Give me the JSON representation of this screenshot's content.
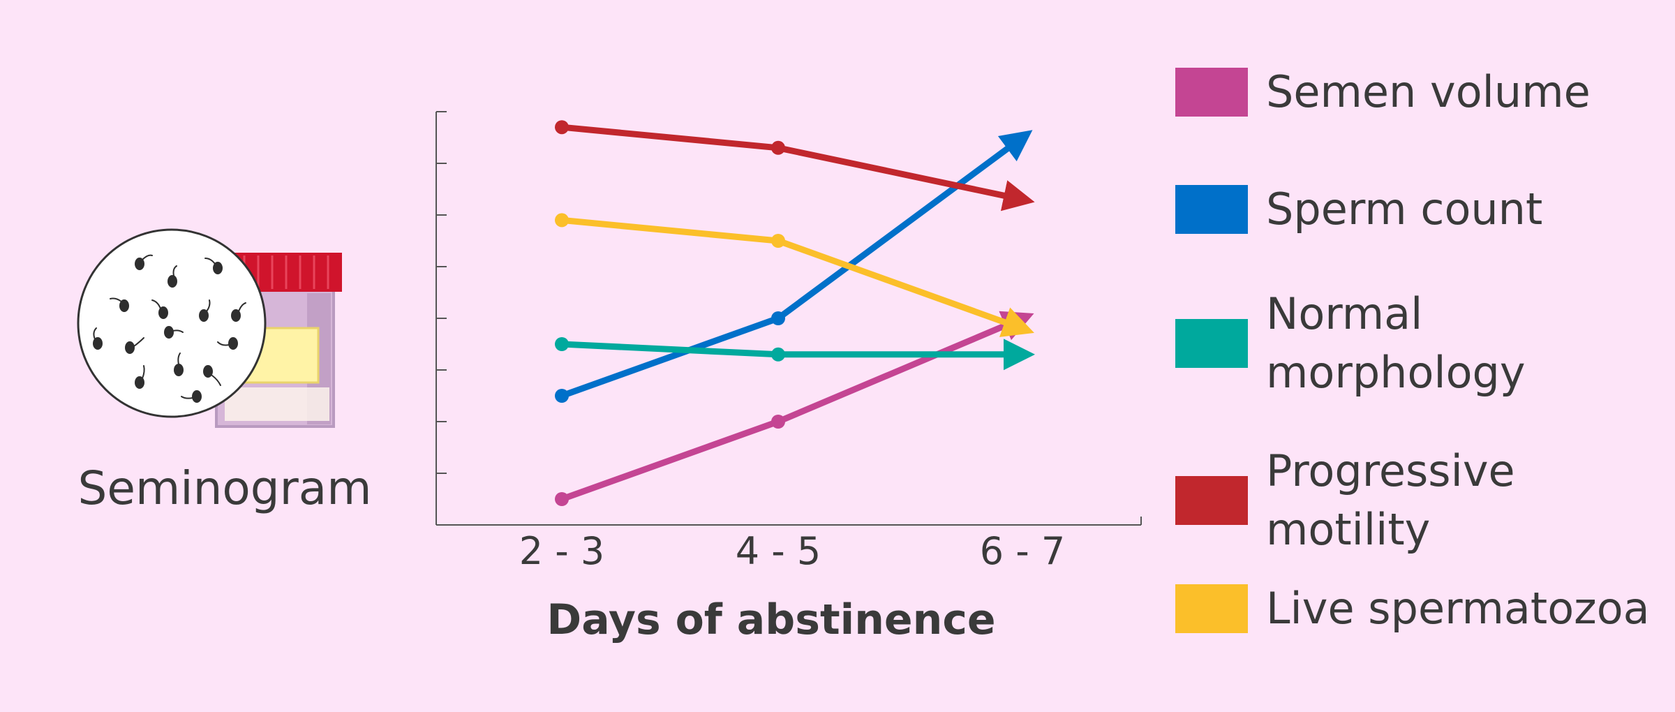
{
  "illustration": {
    "label": "Seminogram",
    "icon": "sample-cup-with-microscope-view-icon",
    "colors": {
      "cap": "#d0142c",
      "label": "#fff3a6",
      "cup": "#d6b6d8"
    }
  },
  "chart_data": {
    "type": "line",
    "categories": [
      "2 - 3",
      "4 - 5",
      "6 - 7"
    ],
    "xlabel": "Days of abstinence",
    "ylabel": "",
    "ylim": [
      0,
      8
    ],
    "y_ticks_labeled": false,
    "grid": false,
    "legend_position": "right",
    "series": [
      {
        "name": "Semen volume",
        "color": "#c44593",
        "values": [
          0.5,
          2.0,
          4.0
        ]
      },
      {
        "name": "Sperm count",
        "color": "#0070c9",
        "values": [
          2.5,
          4.0,
          7.5
        ]
      },
      {
        "name": "Normal morphology",
        "color": "#00a99d",
        "values": [
          3.5,
          3.3,
          3.3
        ]
      },
      {
        "name": "Progressive motility",
        "color": "#c1272d",
        "values": [
          7.7,
          7.3,
          6.3
        ]
      },
      {
        "name": "Live spermatozoa",
        "color": "#fbbf2a",
        "values": [
          5.9,
          5.5,
          3.8
        ]
      }
    ],
    "trend": "arrow at last point for each series"
  },
  "background": "#fde4f8"
}
